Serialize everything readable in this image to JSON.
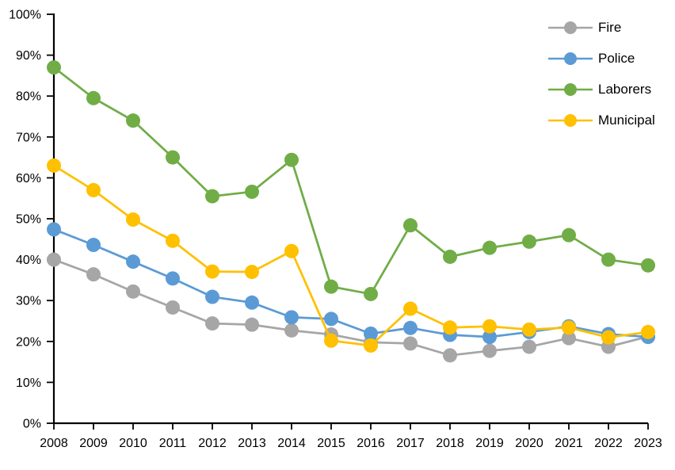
{
  "chart_data": {
    "type": "line",
    "title": "",
    "xlabel": "",
    "ylabel": "",
    "categories": [
      "2008",
      "2009",
      "2010",
      "2011",
      "2012",
      "2013",
      "2014",
      "2015",
      "2016",
      "2017",
      "2018",
      "2019",
      "2020",
      "2021",
      "2022",
      "2023"
    ],
    "series": [
      {
        "name": "Fire",
        "color": "#A6A6A6",
        "values": [
          40.0,
          36.4,
          32.2,
          28.3,
          24.4,
          24.1,
          22.7,
          21.7,
          19.8,
          19.5,
          16.6,
          17.7,
          18.7,
          20.8,
          18.7,
          21.2
        ]
      },
      {
        "name": "Police",
        "color": "#5B9BD5",
        "values": [
          47.4,
          43.6,
          39.5,
          35.4,
          30.9,
          29.5,
          25.9,
          25.5,
          21.9,
          23.3,
          21.6,
          21.1,
          22.3,
          23.7,
          21.8,
          21.1
        ]
      },
      {
        "name": "Laborers",
        "color": "#70AD47",
        "values": [
          87.0,
          79.5,
          74.0,
          65.0,
          55.5,
          56.6,
          64.4,
          33.4,
          31.6,
          48.4,
          40.7,
          42.9,
          44.4,
          46.0,
          40.0,
          38.6
        ]
      },
      {
        "name": "Municipal",
        "color": "#FFC000",
        "values": [
          63.0,
          57.0,
          49.8,
          44.6,
          37.1,
          37.0,
          42.1,
          20.2,
          19.0,
          28.0,
          23.4,
          23.7,
          22.9,
          23.4,
          21.0,
          22.3
        ]
      }
    ],
    "ylim": [
      0,
      100
    ],
    "y_tick_interval": 10,
    "y_tick_labels": [
      "0%",
      "10%",
      "20%",
      "30%",
      "40%",
      "50%",
      "60%",
      "70%",
      "80%",
      "90%",
      "100%"
    ],
    "grid": false,
    "legend_position": "top-right",
    "axis_color": "#000000",
    "background_color": "#FFFFFF"
  }
}
